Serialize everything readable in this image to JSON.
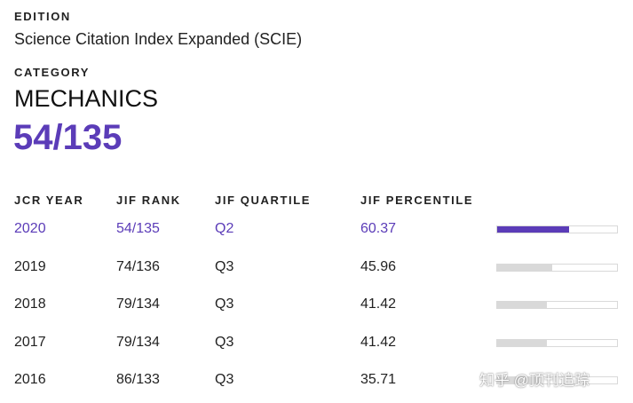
{
  "edition": {
    "label": "EDITION",
    "value": "Science Citation Index Expanded (SCIE)"
  },
  "category": {
    "label": "CATEGORY",
    "value": "MECHANICS",
    "rank": "54/135"
  },
  "colors": {
    "accent": "#5b3cb8",
    "bar_track": "#d9d9d9"
  },
  "table": {
    "headers": {
      "year": "JCR YEAR",
      "rank": "JIF RANK",
      "quartile": "JIF QUARTILE",
      "percentile": "JIF PERCENTILE"
    },
    "rows": [
      {
        "year": "2020",
        "rank": "54/135",
        "quartile": "Q2",
        "percentile": "60.37",
        "highlight": true
      },
      {
        "year": "2019",
        "rank": "74/136",
        "quartile": "Q3",
        "percentile": "45.96",
        "highlight": false
      },
      {
        "year": "2018",
        "rank": "79/134",
        "quartile": "Q3",
        "percentile": "41.42",
        "highlight": false
      },
      {
        "year": "2017",
        "rank": "79/134",
        "quartile": "Q3",
        "percentile": "41.42",
        "highlight": false
      },
      {
        "year": "2016",
        "rank": "86/133",
        "quartile": "Q3",
        "percentile": "35.71",
        "highlight": false
      }
    ]
  },
  "watermark": "知乎 @顶刊追踪"
}
